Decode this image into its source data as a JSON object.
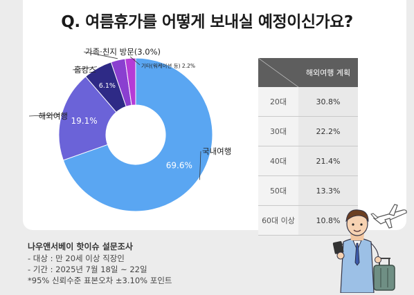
{
  "chart_data": {
    "type": "pie",
    "title": "Q. 여름휴가를 어떻게 보내실 예정이신가요?",
    "slices": [
      {
        "label": "국내여행",
        "value": 69.6,
        "value_text": "69.6%",
        "color": "#5aa6f2"
      },
      {
        "label": "해외여행",
        "value": 19.1,
        "value_text": "19.1%",
        "color": "#6b63d8"
      },
      {
        "label": "홈캉스",
        "value": 6.1,
        "value_text": "6.1%",
        "color": "#2e2a86"
      },
      {
        "label": "가족·친지 방문(3.0%)",
        "value": 3.0,
        "value_text": "",
        "color": "#8a3fd0"
      },
      {
        "label": "기타(워케이션 등) 2.2%",
        "value": 2.2,
        "value_text": "",
        "color": "#b53bd6"
      }
    ]
  },
  "table": {
    "header": "해외여행 계획",
    "rows": [
      {
        "age": "20대",
        "value": "30.8%"
      },
      {
        "age": "30대",
        "value": "22.2%"
      },
      {
        "age": "40대",
        "value": "21.4%"
      },
      {
        "age": "50대",
        "value": "13.3%"
      },
      {
        "age": "60대 이상",
        "value": "10.8%"
      }
    ]
  },
  "footer": {
    "source": "나우앤서베이 핫이슈 설문조사",
    "target": "- 대상 : 만 20세 이상 직장인",
    "period": "- 기간 : 2025년 7월 18일 ~ 22일",
    "note": "*95% 신뢰수준 표본오차 ±3.10% 포인트"
  },
  "colors": {
    "table_header": "#5e5e5e",
    "card": "#ffffff",
    "background": "#ececec"
  },
  "illustration": "traveler-with-suitcase-and-airplane"
}
